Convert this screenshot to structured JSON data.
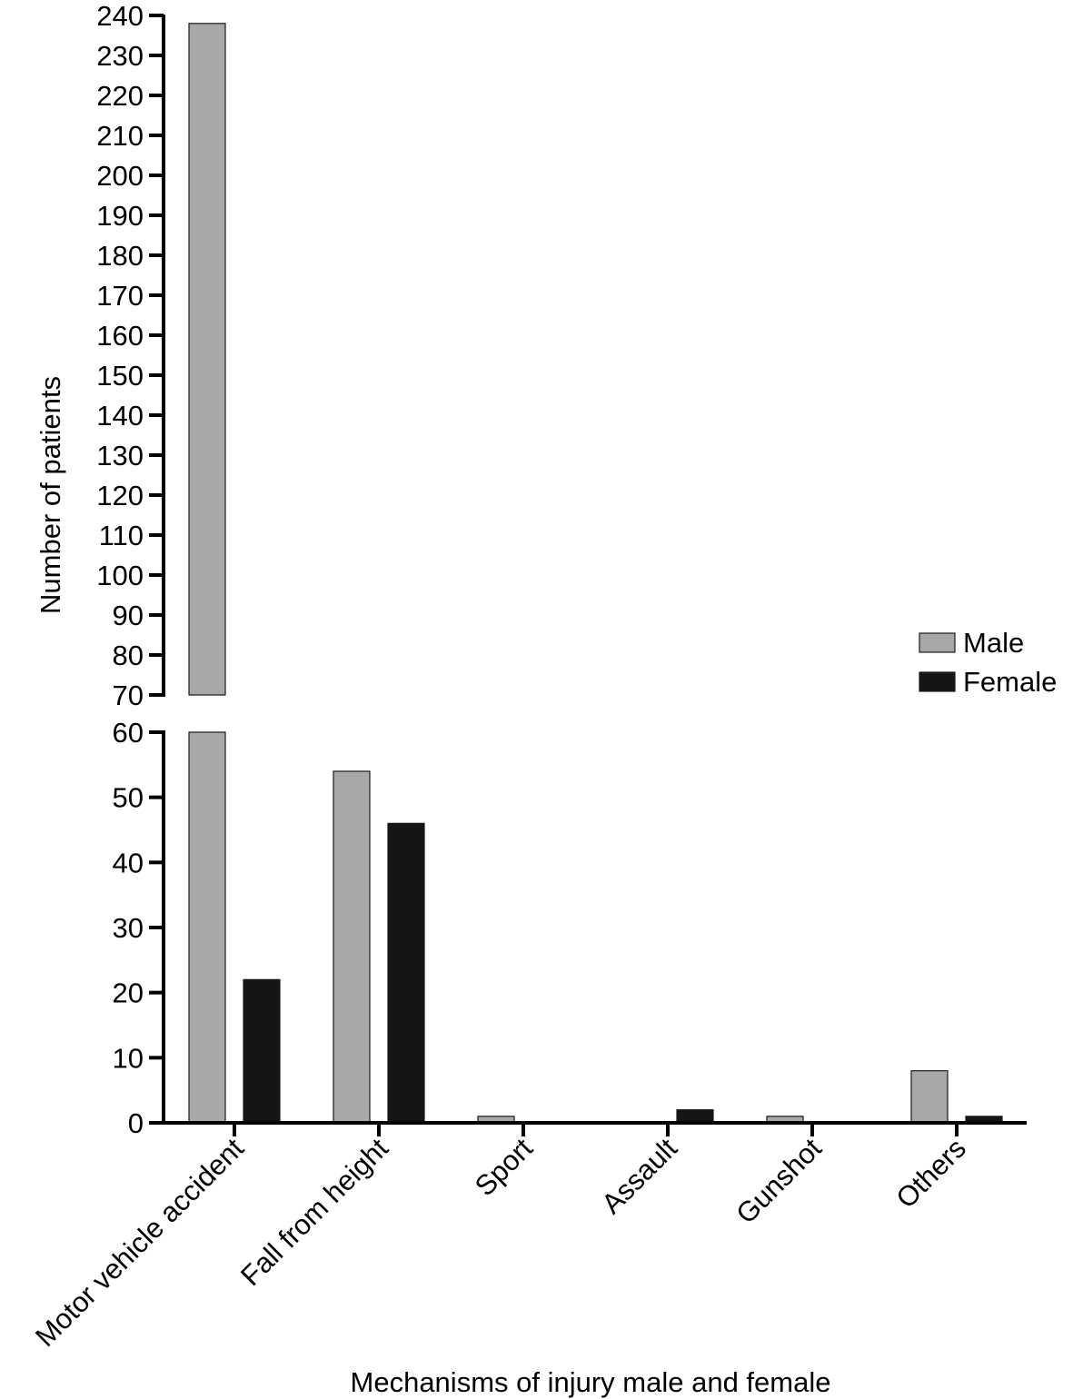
{
  "chart_data": {
    "type": "bar",
    "xlabel": "Mechanisms of injury male and female",
    "ylabel": "Number of patients",
    "categories": [
      "Motor vehicle accident",
      "Fall from height",
      "Sport",
      "Assault",
      "Gunshot",
      "Others"
    ],
    "series": [
      {
        "name": "Male",
        "values": [
          238,
          54,
          1,
          0,
          1,
          8
        ],
        "color": "#a8a8a8"
      },
      {
        "name": "Female",
        "values": [
          22,
          46,
          0,
          2,
          0,
          1
        ],
        "color": "#151515"
      }
    ],
    "y_axis_break": [
      60,
      70
    ],
    "lower_segment": {
      "ylim": [
        0,
        60
      ],
      "ticks": [
        0,
        10,
        20,
        30,
        40,
        50,
        60
      ]
    },
    "upper_segment": {
      "ylim": [
        70,
        240
      ],
      "ticks": [
        70,
        80,
        90,
        100,
        110,
        120,
        130,
        140,
        150,
        160,
        170,
        180,
        190,
        200,
        210,
        220,
        230,
        240
      ]
    },
    "legend_position": "right",
    "grid": false
  }
}
